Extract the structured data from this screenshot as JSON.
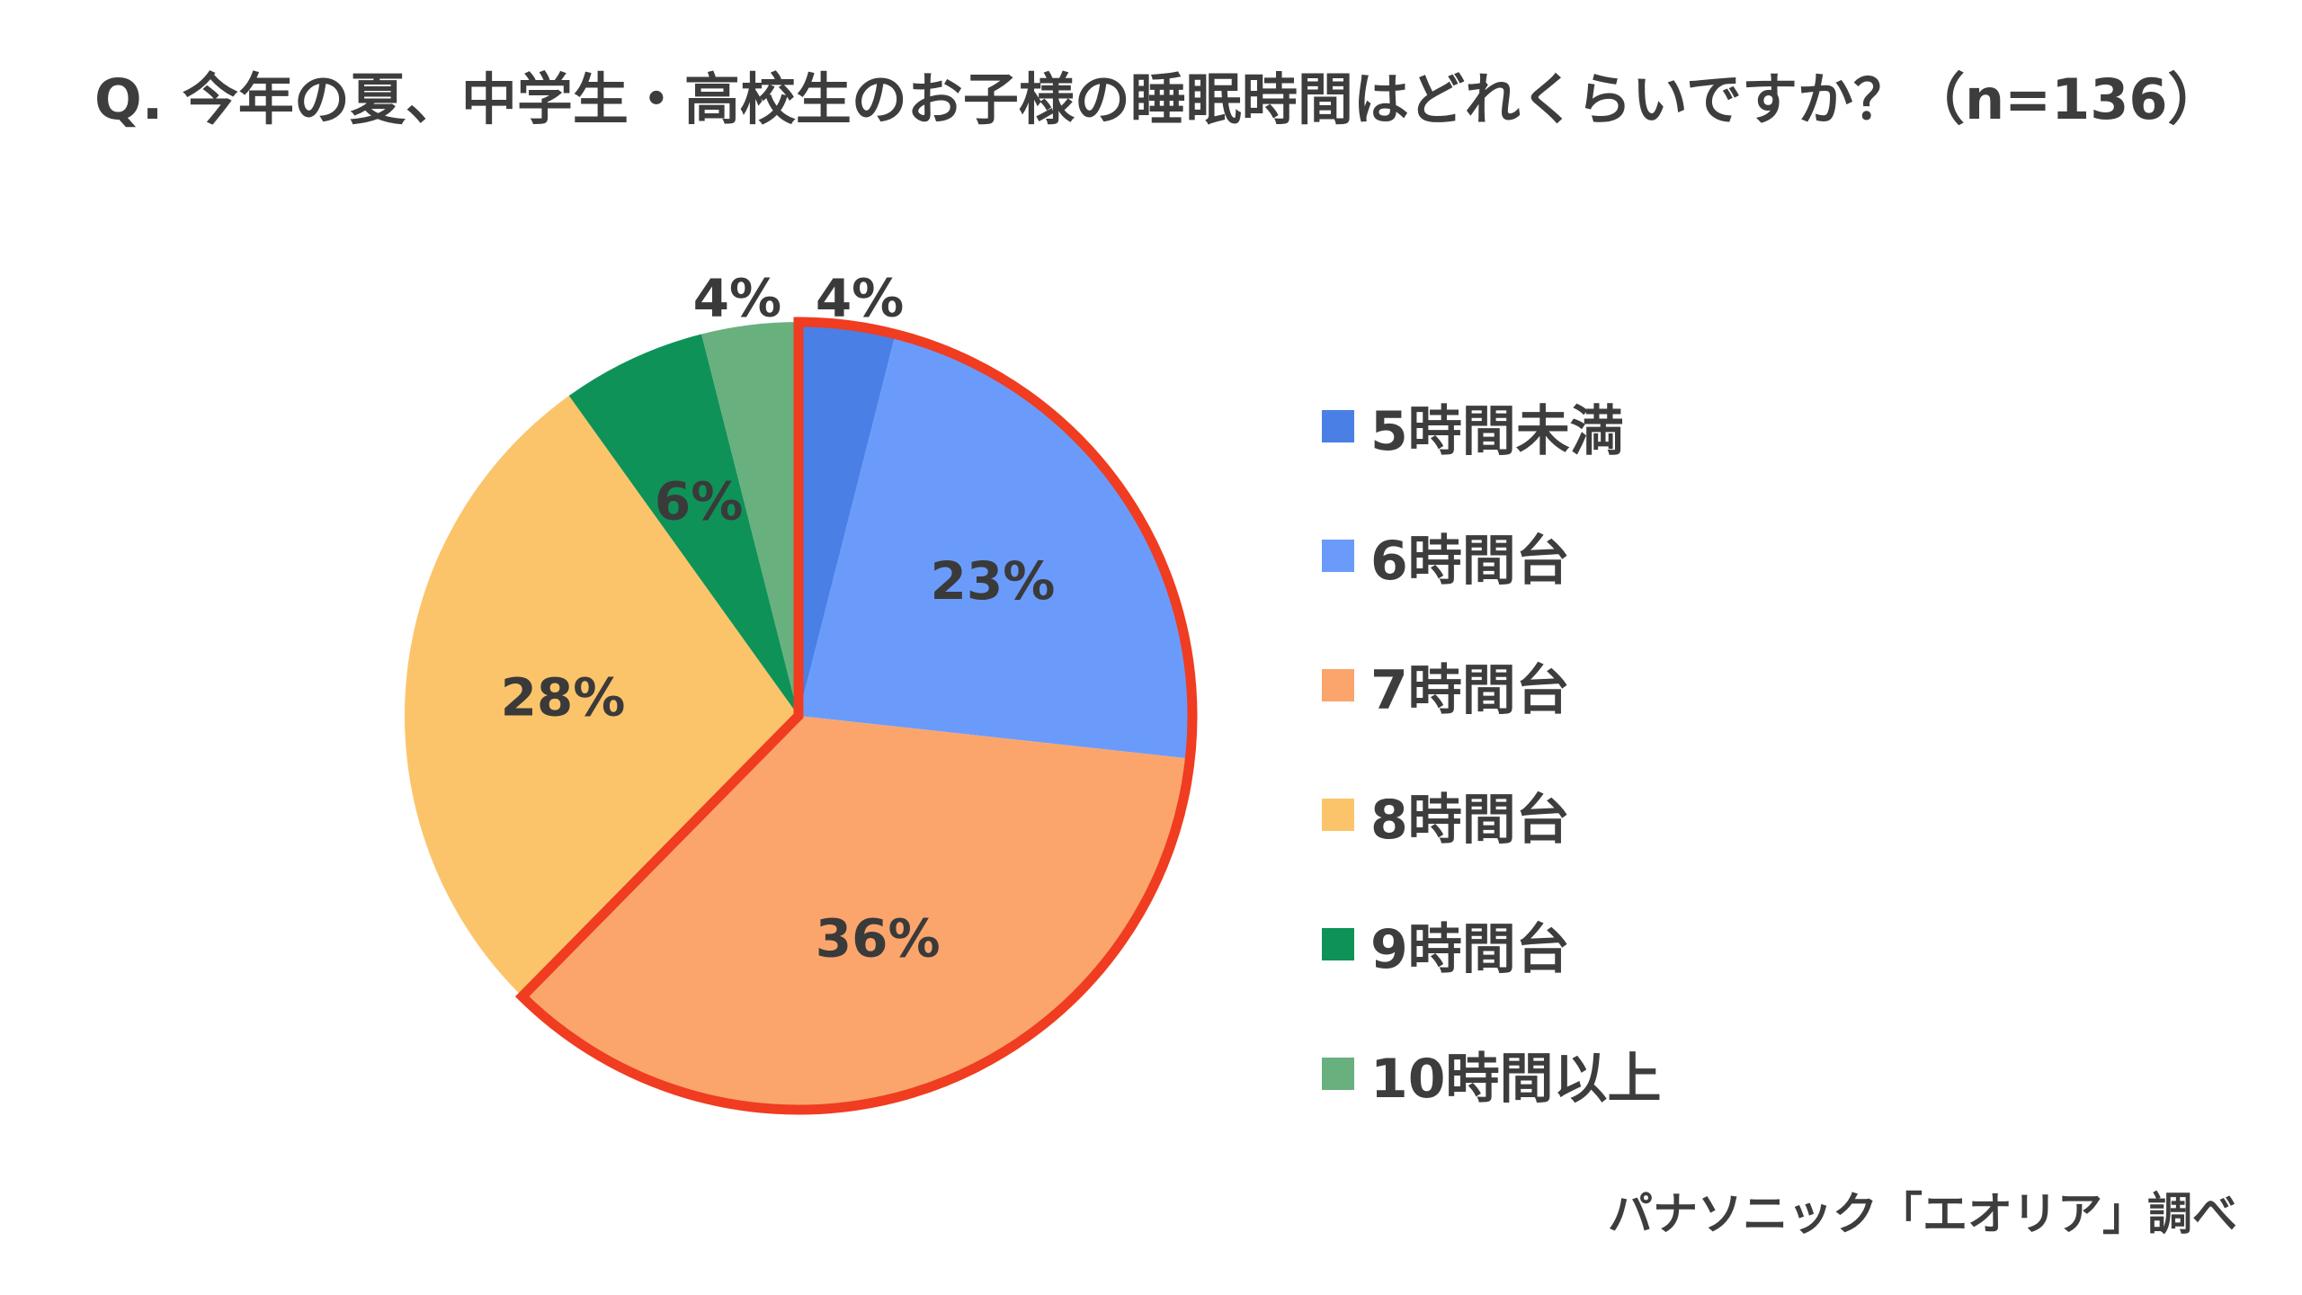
{
  "title": "Q. 今年の夏、中学生・高校生のお子様の睡眠時間はどれくらいですか？（n=136）",
  "source": "パナソニック「エオリア」調べ",
  "chart_data": {
    "type": "pie",
    "categories": [
      "5時間未満",
      "6時間台",
      "7時間台",
      "8時間台",
      "9時間台",
      "10時間以上"
    ],
    "values": [
      4,
      23,
      36,
      28,
      6,
      4
    ],
    "data_labels": [
      "4%",
      "23%",
      "36%",
      "28%",
      "6%",
      "4%"
    ],
    "colors": [
      "#4a7fe5",
      "#6a9bfb",
      "#fba56c",
      "#fcc46a",
      "#0f9258",
      "#69b07f"
    ],
    "highlight": {
      "from_category": "5時間未満",
      "to_category": "7時間台",
      "outline_color": "#f03c20"
    },
    "legend_position": "right"
  }
}
